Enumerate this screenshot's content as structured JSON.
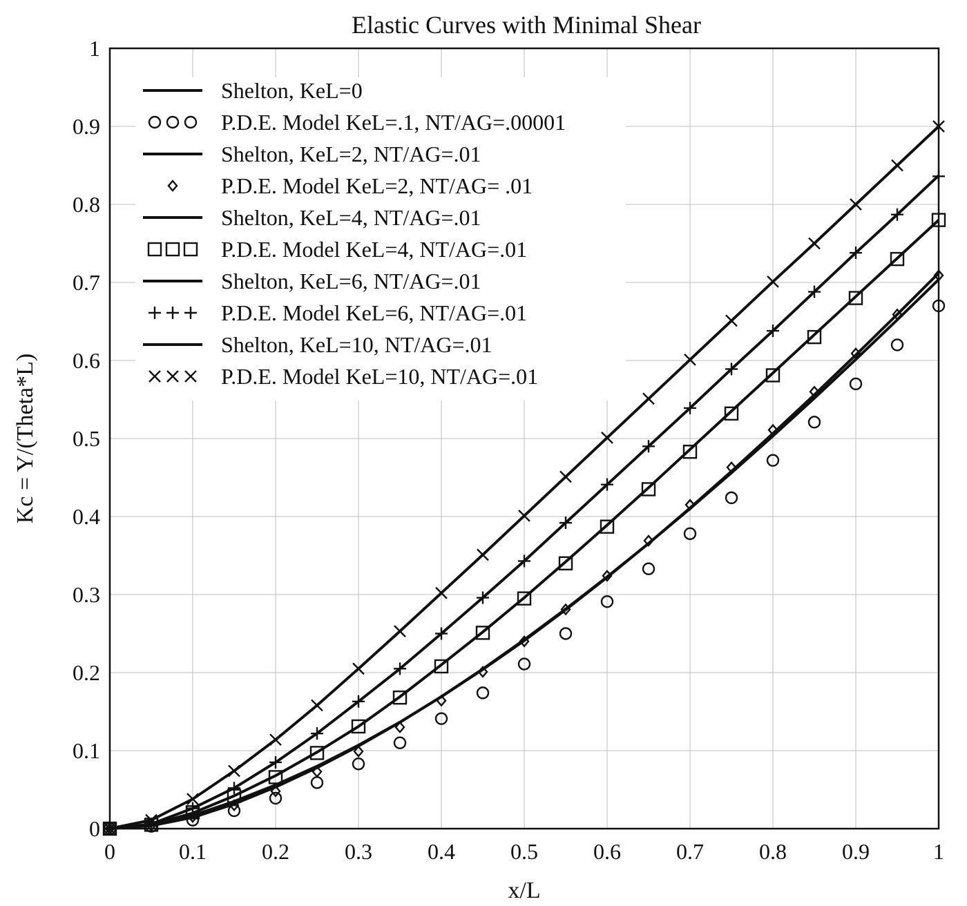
{
  "chart_data": {
    "type": "line",
    "title": "Elastic Curves with Minimal Shear",
    "xlabel": "x/L",
    "ylabel": "Kc = Y/(Theta*L)",
    "xlim": [
      0,
      1
    ],
    "ylim": [
      0,
      1
    ],
    "grid": true,
    "legend_position": "top-left",
    "x_ticks": [
      "0",
      "0.1",
      "0.2",
      "0.3",
      "0.4",
      "0.5",
      "0.6",
      "0.7",
      "0.8",
      "0.9",
      "1"
    ],
    "y_ticks": [
      "0",
      "0.1",
      "0.2",
      "0.3",
      "0.4",
      "0.5",
      "0.6",
      "0.7",
      "0.8",
      "0.9",
      "1"
    ],
    "x": [
      0,
      0.05,
      0.1,
      0.15,
      0.2,
      0.25,
      0.3,
      0.35,
      0.4,
      0.45,
      0.5,
      0.55,
      0.6,
      0.65,
      0.7,
      0.75,
      0.8,
      0.85,
      0.9,
      0.95,
      1.0
    ],
    "series": [
      {
        "name": "Shelton, KeL=0",
        "style": "line",
        "values": [
          0,
          0.0038,
          0.0143,
          0.0316,
          0.0533,
          0.0781,
          0.1058,
          0.1363,
          0.1693,
          0.2046,
          0.2421,
          0.2815,
          0.3227,
          0.3656,
          0.4101,
          0.456,
          0.5032,
          0.5517,
          0.6013,
          0.652,
          0.7037
        ]
      },
      {
        "name": "P.D.E. Model KeL=.1, NT/AG=.00001",
        "style": "markers",
        "marker": "circle",
        "values": [
          0,
          0.003,
          0.011,
          0.023,
          0.039,
          0.059,
          0.083,
          0.11,
          0.141,
          0.174,
          0.211,
          0.25,
          0.291,
          0.333,
          0.378,
          0.424,
          0.472,
          0.521,
          0.57,
          0.62,
          0.67
        ]
      },
      {
        "name": "Shelton, KeL=2, NT/AG=.01",
        "style": "line",
        "values": [
          0,
          0.0042,
          0.0168,
          0.035,
          0.056,
          0.08,
          0.107,
          0.1365,
          0.169,
          0.204,
          0.241,
          0.2805,
          0.322,
          0.3655,
          0.411,
          0.458,
          0.5065,
          0.556,
          0.607,
          0.659,
          0.712
        ]
      },
      {
        "name": "P.D.E. Model KeL=2, NT/AG= .01",
        "style": "markers",
        "marker": "diamond",
        "values": [
          0,
          0.004,
          0.015,
          0.03,
          0.048,
          0.073,
          0.099,
          0.13,
          0.164,
          0.201,
          0.24,
          0.281,
          0.324,
          0.369,
          0.415,
          0.463,
          0.511,
          0.56,
          0.609,
          0.659,
          0.709
        ]
      },
      {
        "name": "Shelton, KeL=4, NT/AG=.01",
        "style": "line",
        "values": [
          0,
          0.005,
          0.02,
          0.042,
          0.068,
          0.098,
          0.131,
          0.169,
          0.21,
          0.252,
          0.296,
          0.342,
          0.389,
          0.437,
          0.486,
          0.535,
          0.584,
          0.633,
          0.682,
          0.731,
          0.78
        ]
      },
      {
        "name": "P.D.E. Model KeL=4, NT/AG=.01",
        "style": "markers",
        "marker": "square",
        "values": [
          0,
          0.005,
          0.021,
          0.042,
          0.066,
          0.097,
          0.131,
          0.168,
          0.208,
          0.251,
          0.295,
          0.34,
          0.387,
          0.435,
          0.483,
          0.532,
          0.581,
          0.63,
          0.68,
          0.73,
          0.78
        ]
      },
      {
        "name": "Shelton, KeL=6, NT/AG=.01",
        "style": "line",
        "values": [
          0,
          0.006,
          0.026,
          0.052,
          0.085,
          0.122,
          0.163,
          0.205,
          0.25,
          0.296,
          0.343,
          0.392,
          0.441,
          0.49,
          0.539,
          0.589,
          0.638,
          0.688,
          0.738,
          0.787,
          0.837
        ]
      },
      {
        "name": "P.D.E. Model KeL=6, NT/AG=.01",
        "style": "markers",
        "marker": "plus",
        "values": [
          0,
          0.006,
          0.026,
          0.052,
          0.085,
          0.122,
          0.163,
          0.205,
          0.25,
          0.296,
          0.343,
          0.392,
          0.441,
          0.49,
          0.539,
          0.589,
          0.638,
          0.688,
          0.738,
          0.787,
          0.836
        ]
      },
      {
        "name": "Shelton, KeL=10, NT/AG=.01",
        "style": "line",
        "values": [
          0,
          0.011,
          0.038,
          0.074,
          0.114,
          0.158,
          0.205,
          0.253,
          0.302,
          0.351,
          0.401,
          0.451,
          0.501,
          0.551,
          0.601,
          0.651,
          0.701,
          0.75,
          0.8,
          0.85,
          0.9
        ]
      },
      {
        "name": "P.D.E. Model KeL=10, NT/AG=.01",
        "style": "markers",
        "marker": "x",
        "values": [
          0,
          0.011,
          0.038,
          0.074,
          0.114,
          0.158,
          0.205,
          0.253,
          0.302,
          0.351,
          0.401,
          0.451,
          0.501,
          0.551,
          0.601,
          0.651,
          0.701,
          0.75,
          0.8,
          0.85,
          0.9
        ]
      }
    ]
  }
}
